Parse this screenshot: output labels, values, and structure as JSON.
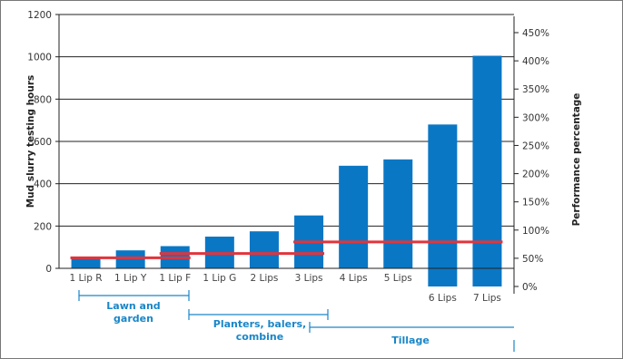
{
  "chart_data": {
    "type": "bar",
    "ylabel_left": "Mud slurry testing hours",
    "ylabel_right": "Performance percentage",
    "ylim_left": [
      0,
      1200
    ],
    "ylim_right": [
      -5,
      480
    ],
    "yticks_left": [
      "0",
      "200",
      "400",
      "600",
      "800",
      "1000",
      "1200"
    ],
    "yticks_right": [
      "0%",
      "50%",
      "100%",
      "150%",
      "200%",
      "250%",
      "300%",
      "350%",
      "400%",
      "450%"
    ],
    "categories": [
      "1 Lip R",
      "1 Lip Y",
      "1 Lip F",
      "1 Lip G",
      "2 Lips",
      "3 Lips",
      "4 Lips",
      "5 Lips",
      "6 Lips",
      "7 Lips"
    ],
    "series": [
      {
        "values": [
          50,
          85,
          105,
          150,
          175,
          250,
          485,
          515,
          680,
          1005
        ]
      }
    ],
    "performance_lines": [
      {
        "from": "1 Lip R",
        "to": "1 Lip F",
        "value": 50
      },
      {
        "from": "1 Lip F",
        "to": "3 Lips",
        "value": 70
      },
      {
        "from": "3 Lips",
        "to": "7 Lips",
        "value": 125
      }
    ],
    "groups": [
      {
        "label_lines": [
          "Lawn and",
          "garden"
        ],
        "from": "1 Lip R",
        "to": "1 Lip F"
      },
      {
        "label_lines": [
          "Planters, balers,",
          "combine"
        ],
        "from": "1 Lip F",
        "to": "3 Lips"
      },
      {
        "label_lines": [
          "Tillage"
        ],
        "from": "3 Lips",
        "to": "7 Lips"
      }
    ],
    "grid": true,
    "colors": {
      "bar": "#0a77c5",
      "line": "#e2343b",
      "group": "#1a86c8"
    }
  }
}
